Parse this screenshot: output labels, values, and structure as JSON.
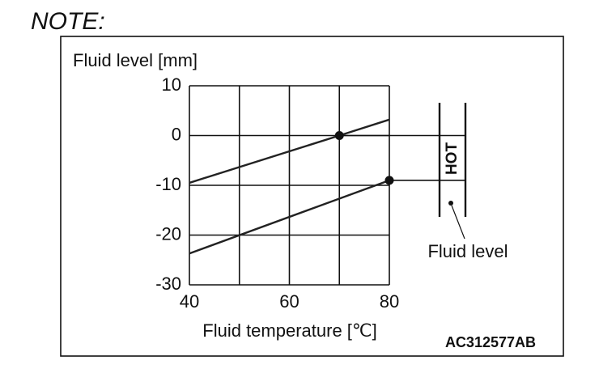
{
  "note": "NOTE:",
  "chart_data": {
    "type": "line",
    "y_label": "Fluid level [mm]",
    "x_label": "Fluid temperature [℃]",
    "code": "AC312577AB",
    "annotation": "Fluid level",
    "band_label": "HOT",
    "xlim": [
      40,
      80
    ],
    "ylim": [
      -30,
      10
    ],
    "xticks": [
      40,
      60,
      80
    ],
    "x_grid": [
      40,
      50,
      60,
      70,
      80
    ],
    "yticks": [
      10,
      0,
      -10,
      -20,
      -30
    ],
    "grid": true,
    "series": [
      {
        "color": "#222222",
        "x": [
          40,
          70,
          80
        ],
        "values": [
          -9.5,
          0,
          3.2
        ]
      },
      {
        "color": "#222222",
        "x": [
          40,
          80
        ],
        "values": [
          -23.7,
          -9
        ]
      }
    ],
    "points": [
      {
        "x": 70,
        "y": 0
      },
      {
        "x": 80,
        "y": -9
      }
    ]
  }
}
